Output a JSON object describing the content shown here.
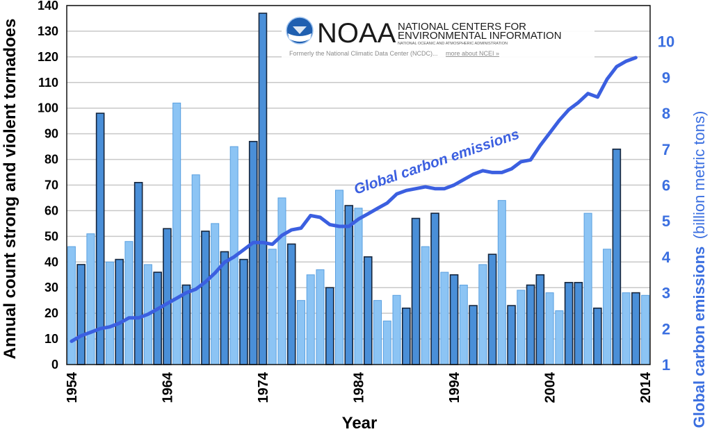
{
  "colors": {
    "bar_light": "#8cc4f4",
    "bar_light_edge": "#5aa0e0",
    "bar_dark": "#4a8fd8",
    "bar_dark_edge": "#15253c",
    "line": "#3b5fe0",
    "right_axis": "#3b6fe0",
    "grid": "#c8c8c8",
    "noaa_blue": "#1f5fb0"
  },
  "logo": {
    "wordmark": "NOAA",
    "line1": "NATIONAL CENTERS FOR",
    "line2": "ENVIRONMENTAL INFORMATION",
    "line3": "NATIONAL OCEANIC AND ATMOSPHERIC ADMINISTRATION",
    "note": "Formerly the National Climatic Data Center (NCDC)...",
    "link": "more about NCEI »"
  },
  "chart_data": {
    "type": "bar",
    "xlabel": "Year",
    "ylabel": "Annual count strong and violent tornadoes",
    "y2label_main": "Global carbon emissions",
    "y2label_unit": "(billion metric tons)",
    "x_ticks": [
      "1954",
      "1964",
      "1974",
      "1984",
      "1994",
      "2004",
      "2014"
    ],
    "ylim": [
      0,
      140
    ],
    "y_ticks": [
      0,
      10,
      20,
      30,
      40,
      50,
      60,
      70,
      80,
      90,
      100,
      110,
      120,
      130,
      140
    ],
    "y2lim": [
      1,
      11
    ],
    "y2_ticks": [
      1,
      2,
      3,
      4,
      5,
      6,
      7,
      8,
      9,
      10
    ],
    "grid": "horizontal",
    "years": [
      1954,
      1955,
      1956,
      1957,
      1958,
      1959,
      1960,
      1961,
      1962,
      1963,
      1964,
      1965,
      1966,
      1967,
      1968,
      1969,
      1970,
      1971,
      1972,
      1973,
      1974,
      1975,
      1976,
      1977,
      1978,
      1979,
      1980,
      1981,
      1982,
      1983,
      1984,
      1985,
      1986,
      1987,
      1988,
      1989,
      1990,
      1991,
      1992,
      1993,
      1994,
      1995,
      1996,
      1997,
      1998,
      1999,
      2000,
      2001,
      2002,
      2003,
      2004,
      2005,
      2006,
      2007,
      2008,
      2009,
      2010,
      2011,
      2012,
      2013,
      2014
    ],
    "tornado_counts": [
      46,
      39,
      51,
      98,
      40,
      41,
      48,
      71,
      39,
      36,
      53,
      102,
      31,
      74,
      52,
      55,
      44,
      85,
      41,
      87,
      137,
      45,
      65,
      47,
      25,
      35,
      37,
      30,
      68,
      62,
      61,
      42,
      25,
      17,
      27,
      22,
      57,
      46,
      59,
      36,
      35,
      31,
      23,
      39,
      43,
      64,
      23,
      29,
      31,
      35,
      28,
      21,
      32,
      32,
      59,
      22,
      45,
      84,
      28,
      28,
      27
    ],
    "bar_style": [
      "light",
      "dark",
      "light",
      "dark",
      "light",
      "dark",
      "light",
      "dark",
      "light",
      "dark",
      "dark",
      "light",
      "dark",
      "light",
      "dark",
      "light",
      "dark",
      "light",
      "dark",
      "dark",
      "dark",
      "light",
      "light",
      "dark",
      "light",
      "light",
      "light",
      "dark",
      "light",
      "dark",
      "light",
      "dark",
      "light",
      "light",
      "light",
      "dark",
      "dark",
      "light",
      "dark",
      "light",
      "dark",
      "light",
      "dark",
      "light",
      "dark",
      "light",
      "dark",
      "light",
      "dark",
      "dark",
      "light",
      "light",
      "dark",
      "dark",
      "light",
      "dark",
      "light",
      "dark",
      "light",
      "dark",
      "light"
    ],
    "series": [
      {
        "name": "Global carbon emissions",
        "values": [
          1.65,
          1.8,
          1.9,
          2.0,
          2.05,
          2.15,
          2.3,
          2.3,
          2.4,
          2.55,
          2.7,
          2.85,
          3.0,
          3.1,
          3.3,
          3.55,
          3.85,
          4.0,
          4.2,
          4.4,
          4.4,
          4.35,
          4.6,
          4.75,
          4.8,
          5.15,
          5.1,
          4.9,
          4.85,
          4.85,
          5.05,
          5.2,
          5.35,
          5.5,
          5.75,
          5.85,
          5.9,
          5.95,
          5.9,
          5.9,
          6.0,
          6.15,
          6.3,
          6.4,
          6.35,
          6.35,
          6.45,
          6.65,
          6.7,
          7.1,
          7.45,
          7.8,
          8.1,
          8.3,
          8.55,
          8.45,
          8.95,
          9.3,
          9.45,
          9.55,
          null
        ]
      }
    ]
  }
}
